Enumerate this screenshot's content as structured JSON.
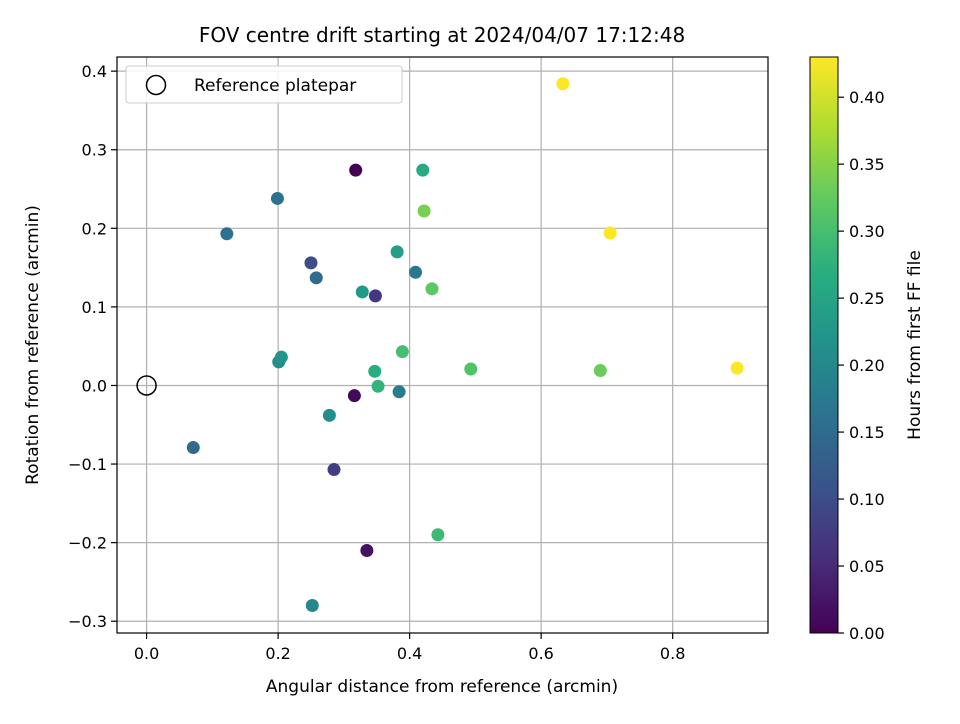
{
  "chart_data": {
    "type": "scatter",
    "title": "FOV centre drift starting at 2024/04/07 17:12:48",
    "xlabel": "Angular distance from reference (arcmin)",
    "ylabel": "Rotation from reference (arcmin)",
    "colorbar_label": "Hours from first FF file",
    "colormap": "viridis",
    "xlim": [
      -0.045,
      0.945
    ],
    "ylim": [
      -0.315,
      0.418
    ],
    "clim": [
      0.0,
      0.43
    ],
    "xticks": [
      0.0,
      0.2,
      0.4,
      0.6,
      0.8
    ],
    "xtick_labels": [
      "0.0",
      "0.2",
      "0.4",
      "0.6",
      "0.8"
    ],
    "yticks": [
      -0.3,
      -0.2,
      -0.1,
      0.0,
      0.1,
      0.2,
      0.3,
      0.4
    ],
    "ytick_labels": [
      "−0.3",
      "−0.2",
      "−0.1",
      "0.0",
      "0.1",
      "0.2",
      "0.3",
      "0.4"
    ],
    "cticks": [
      0.0,
      0.05,
      0.1,
      0.15,
      0.2,
      0.25,
      0.3,
      0.35,
      0.4
    ],
    "ctick_labels": [
      "0.00",
      "0.05",
      "0.10",
      "0.15",
      "0.20",
      "0.25",
      "0.30",
      "0.35",
      "0.40"
    ],
    "grid": true,
    "legend": {
      "location": "upper-left",
      "label": "Reference platepar"
    },
    "reference_point": {
      "x": 0.0,
      "y": 0.0
    },
    "series": [
      {
        "x": 0.318,
        "y": 0.274,
        "c": 0.0
      },
      {
        "x": 0.316,
        "y": -0.013,
        "c": 0.01
      },
      {
        "x": 0.335,
        "y": -0.21,
        "c": 0.02
      },
      {
        "x": 0.348,
        "y": 0.114,
        "c": 0.07
      },
      {
        "x": 0.285,
        "y": -0.107,
        "c": 0.08
      },
      {
        "x": 0.25,
        "y": 0.156,
        "c": 0.1
      },
      {
        "x": 0.258,
        "y": 0.137,
        "c": 0.15
      },
      {
        "x": 0.071,
        "y": -0.079,
        "c": 0.15
      },
      {
        "x": 0.199,
        "y": 0.238,
        "c": 0.16
      },
      {
        "x": 0.122,
        "y": 0.193,
        "c": 0.16
      },
      {
        "x": 0.409,
        "y": 0.144,
        "c": 0.17
      },
      {
        "x": 0.384,
        "y": -0.008,
        "c": 0.18
      },
      {
        "x": 0.252,
        "y": -0.28,
        "c": 0.2
      },
      {
        "x": 0.278,
        "y": -0.038,
        "c": 0.21
      },
      {
        "x": 0.201,
        "y": 0.03,
        "c": 0.21
      },
      {
        "x": 0.205,
        "y": 0.036,
        "c": 0.22
      },
      {
        "x": 0.328,
        "y": 0.119,
        "c": 0.23
      },
      {
        "x": 0.381,
        "y": 0.17,
        "c": 0.24
      },
      {
        "x": 0.42,
        "y": 0.274,
        "c": 0.26
      },
      {
        "x": 0.347,
        "y": 0.018,
        "c": 0.27
      },
      {
        "x": 0.352,
        "y": -0.001,
        "c": 0.28
      },
      {
        "x": 0.443,
        "y": -0.19,
        "c": 0.29
      },
      {
        "x": 0.389,
        "y": 0.043,
        "c": 0.3
      },
      {
        "x": 0.493,
        "y": 0.021,
        "c": 0.31
      },
      {
        "x": 0.434,
        "y": 0.123,
        "c": 0.32
      },
      {
        "x": 0.69,
        "y": 0.019,
        "c": 0.33
      },
      {
        "x": 0.422,
        "y": 0.222,
        "c": 0.34
      },
      {
        "x": 0.633,
        "y": 0.384,
        "c": 0.43
      },
      {
        "x": 0.705,
        "y": 0.194,
        "c": 0.43
      },
      {
        "x": 0.898,
        "y": 0.022,
        "c": 0.43
      }
    ]
  }
}
